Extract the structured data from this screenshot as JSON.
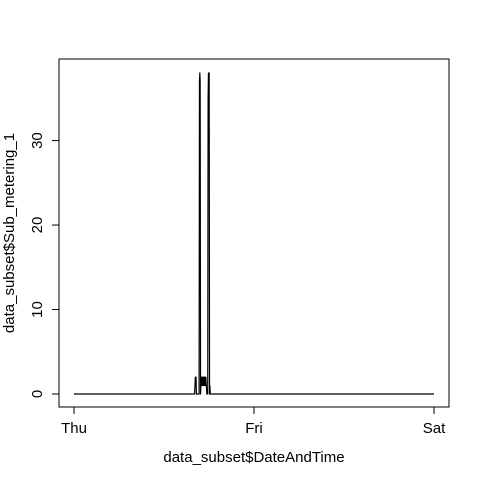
{
  "chart_data": {
    "type": "line",
    "title": "",
    "xlabel": "data_subset$DateAndTime",
    "ylabel": "data_subset$Sub_metering_1",
    "x_ticks": [
      {
        "value": 0,
        "label": "Thu"
      },
      {
        "value": 1,
        "label": "Fri"
      },
      {
        "value": 2,
        "label": "Sat"
      }
    ],
    "y_ticks": [
      0,
      10,
      20,
      30
    ],
    "xlim": [
      0,
      2
    ],
    "ylim": [
      0,
      38
    ],
    "grid": false,
    "legend": "none",
    "series": [
      {
        "color": "#000000",
        "x_unit": "days since Thu 00:00",
        "points": [
          [
            0.0,
            0
          ],
          [
            0.67,
            0
          ],
          [
            0.672,
            1
          ],
          [
            0.674,
            2
          ],
          [
            0.676,
            1
          ],
          [
            0.678,
            2
          ],
          [
            0.68,
            0
          ],
          [
            0.695,
            0
          ],
          [
            0.697,
            37
          ],
          [
            0.699,
            38
          ],
          [
            0.701,
            37
          ],
          [
            0.703,
            0
          ],
          [
            0.705,
            1
          ],
          [
            0.708,
            2
          ],
          [
            0.711,
            1
          ],
          [
            0.714,
            2
          ],
          [
            0.717,
            1
          ],
          [
            0.72,
            2
          ],
          [
            0.723,
            1
          ],
          [
            0.726,
            2
          ],
          [
            0.729,
            1
          ],
          [
            0.732,
            2
          ],
          [
            0.735,
            1
          ],
          [
            0.738,
            0
          ],
          [
            0.743,
            0
          ],
          [
            0.745,
            35
          ],
          [
            0.747,
            38
          ],
          [
            0.749,
            37
          ],
          [
            0.751,
            38
          ],
          [
            0.753,
            0
          ],
          [
            0.755,
            1
          ],
          [
            0.757,
            0
          ],
          [
            1.0,
            0
          ],
          [
            2.0,
            0
          ]
        ]
      }
    ]
  }
}
